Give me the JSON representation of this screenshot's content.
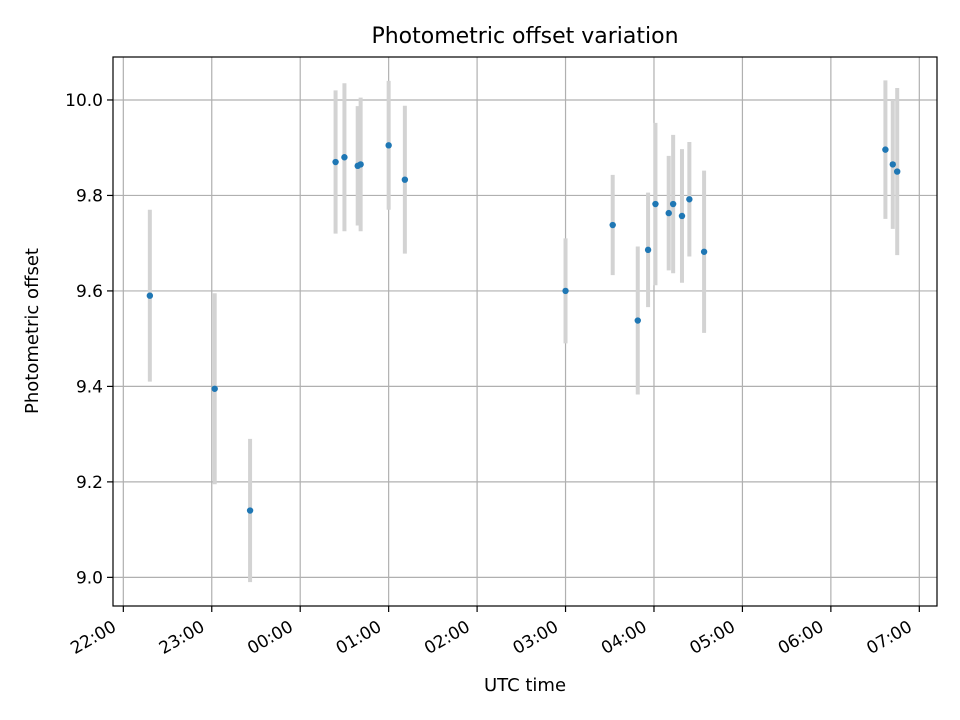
{
  "chart_data": {
    "type": "scatter",
    "title": "Photometric offset variation",
    "xlabel": "UTC time",
    "ylabel": "Photometric offset",
    "x_unit": "UTC time (hh:mm), night spanning midnight",
    "xlim": [
      "21:53",
      "07:12"
    ],
    "ylim": [
      8.94,
      10.09
    ],
    "x_ticks": [
      "22:00",
      "23:00",
      "00:00",
      "01:00",
      "02:00",
      "03:00",
      "04:00",
      "05:00",
      "06:00",
      "07:00"
    ],
    "y_ticks": [
      "9.0",
      "9.2",
      "9.4",
      "9.6",
      "9.8",
      "10.0"
    ],
    "grid": true,
    "legend": "none",
    "colors": {
      "marker": "#1f77b4",
      "errorbar": "#d3d3d3",
      "grid": "#b0b0b0"
    },
    "series": [
      {
        "points": [
          {
            "time": "22:18",
            "y": 9.59,
            "err": 0.18
          },
          {
            "time": "23:02",
            "y": 9.395,
            "err": 0.2
          },
          {
            "time": "23:26",
            "y": 9.14,
            "err": 0.15
          },
          {
            "time": "00:24",
            "y": 9.87,
            "err": 0.15
          },
          {
            "time": "00:30",
            "y": 9.88,
            "err": 0.155
          },
          {
            "time": "00:39",
            "y": 9.862,
            "err": 0.125
          },
          {
            "time": "00:41",
            "y": 9.865,
            "err": 0.14
          },
          {
            "time": "01:00",
            "y": 9.905,
            "err": 0.135
          },
          {
            "time": "01:11",
            "y": 9.833,
            "err": 0.155
          },
          {
            "time": "03:00",
            "y": 9.6,
            "err": 0.11
          },
          {
            "time": "03:32",
            "y": 9.738,
            "err": 0.105
          },
          {
            "time": "03:49",
            "y": 9.538,
            "err": 0.155
          },
          {
            "time": "03:56",
            "y": 9.686,
            "err": 0.12
          },
          {
            "time": "04:01",
            "y": 9.782,
            "err": 0.17
          },
          {
            "time": "04:10",
            "y": 9.763,
            "err": 0.12
          },
          {
            "time": "04:13",
            "y": 9.782,
            "err": 0.145
          },
          {
            "time": "04:19",
            "y": 9.757,
            "err": 0.14
          },
          {
            "time": "04:24",
            "y": 9.792,
            "err": 0.12
          },
          {
            "time": "04:34",
            "y": 9.682,
            "err": 0.17
          },
          {
            "time": "06:37",
            "y": 9.896,
            "err": 0.145
          },
          {
            "time": "06:42",
            "y": 9.865,
            "err": 0.135
          },
          {
            "time": "06:45",
            "y": 9.85,
            "err": 0.175
          }
        ]
      }
    ]
  }
}
